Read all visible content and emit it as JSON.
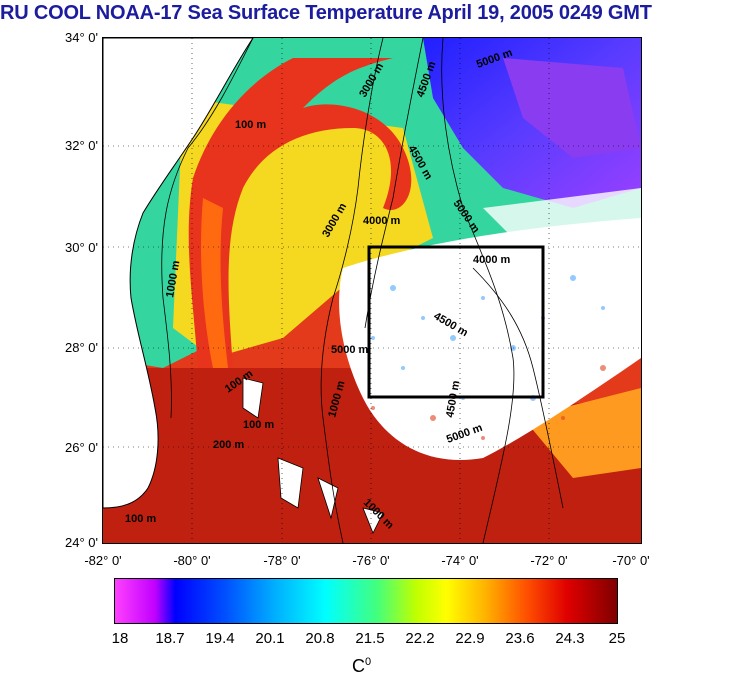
{
  "title": "RU COOL  NOAA-17 Sea Surface Temperature April 19, 2005 0249 GMT",
  "latitude_labels": [
    "34° 0'",
    "32° 0'",
    "30° 0'",
    "28° 0'",
    "26° 0'",
    "24° 0'"
  ],
  "longitude_labels": [
    "-82° 0'",
    "-80° 0'",
    "-78° 0'",
    "-76° 0'",
    "-74° 0'",
    "-72° 0'",
    "-70° 0'"
  ],
  "colorbar": {
    "tick_labels": [
      "18",
      "18.7",
      "19.4",
      "20.1",
      "20.8",
      "21.5",
      "22.2",
      "22.9",
      "23.6",
      "24.3",
      "25"
    ],
    "unit": "C",
    "unit_superscript": "0"
  },
  "contour_labels": [
    "100 m",
    "1000 m",
    "3000 m",
    "4000 m",
    "4500 m",
    "5000 m",
    "100 m",
    "3000 m",
    "4000 m",
    "4500 m",
    "5000 m",
    "4500 m",
    "5000 m",
    "1000 m",
    "100 m",
    "200 m",
    "1000 m",
    "4500 m",
    "5000 m",
    "100 m"
  ],
  "region_box": {
    "lat_range": [
      27,
      30
    ],
    "lon_range": [
      -76,
      -72
    ],
    "color": "#000000"
  },
  "map_extent": {
    "lat_range": [
      24,
      34
    ],
    "lon_range": [
      -82,
      -70
    ]
  },
  "colors": {
    "title": "#1c1c9e",
    "land": "#ffffff",
    "coast": "#000000"
  }
}
